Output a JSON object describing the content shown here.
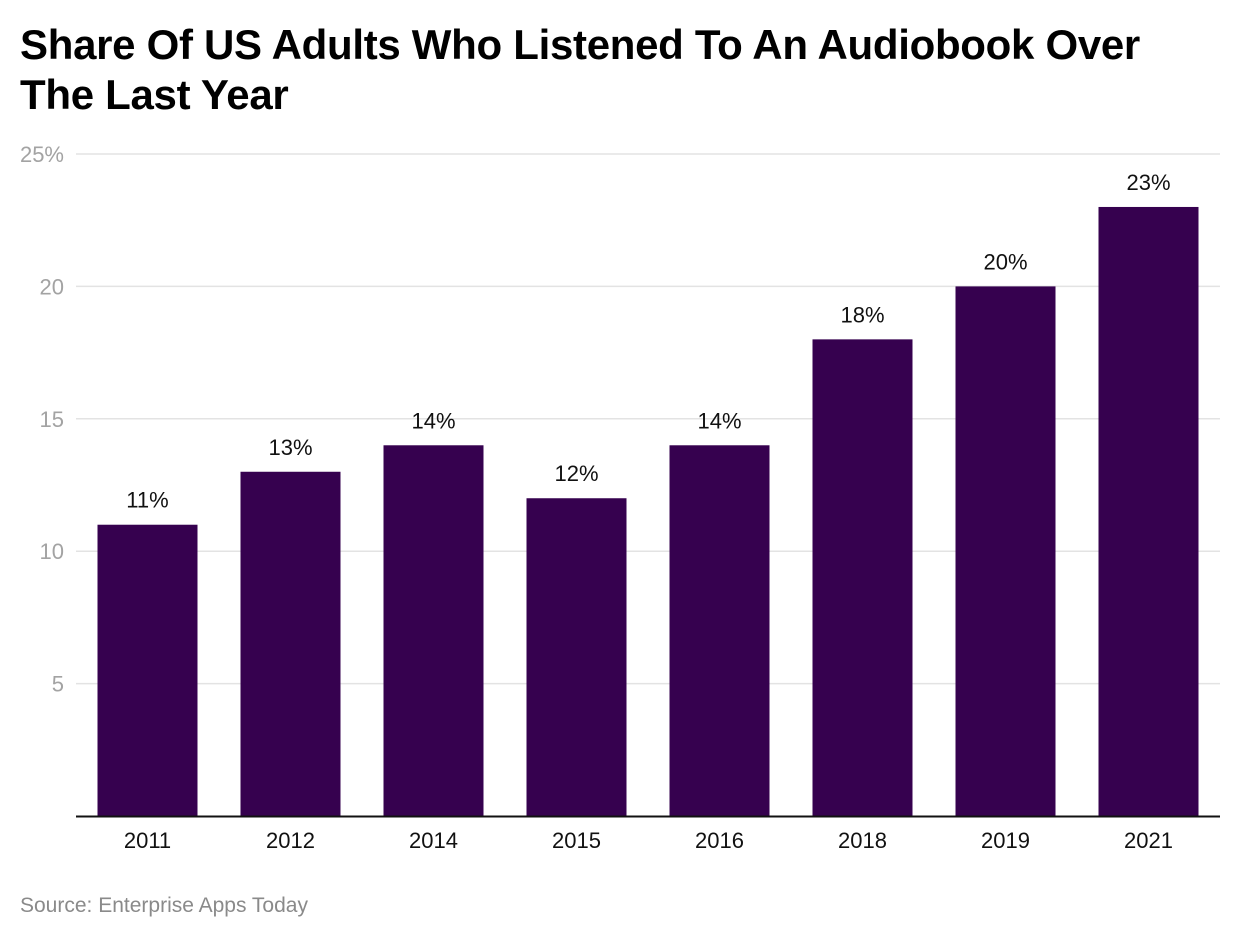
{
  "chart_data": {
    "type": "bar",
    "title": "Share Of US Adults Who Listened To An Audiobook Over The Last Year",
    "categories": [
      "2011",
      "2012",
      "2014",
      "2015",
      "2016",
      "2018",
      "2019",
      "2021"
    ],
    "values": [
      11,
      13,
      14,
      12,
      14,
      18,
      20,
      23
    ],
    "value_labels": [
      "11%",
      "13%",
      "14%",
      "12%",
      "14%",
      "18%",
      "20%",
      "23%"
    ],
    "y_ticks": [
      5,
      10,
      15,
      20,
      25
    ],
    "y_tick_labels": [
      "5",
      "10",
      "15",
      "20",
      "25%"
    ],
    "ylim": [
      0,
      25
    ],
    "xlabel": "",
    "ylabel": "",
    "grid": true,
    "bar_color": "#36014f",
    "source": "Source: Enterprise Apps Today"
  }
}
